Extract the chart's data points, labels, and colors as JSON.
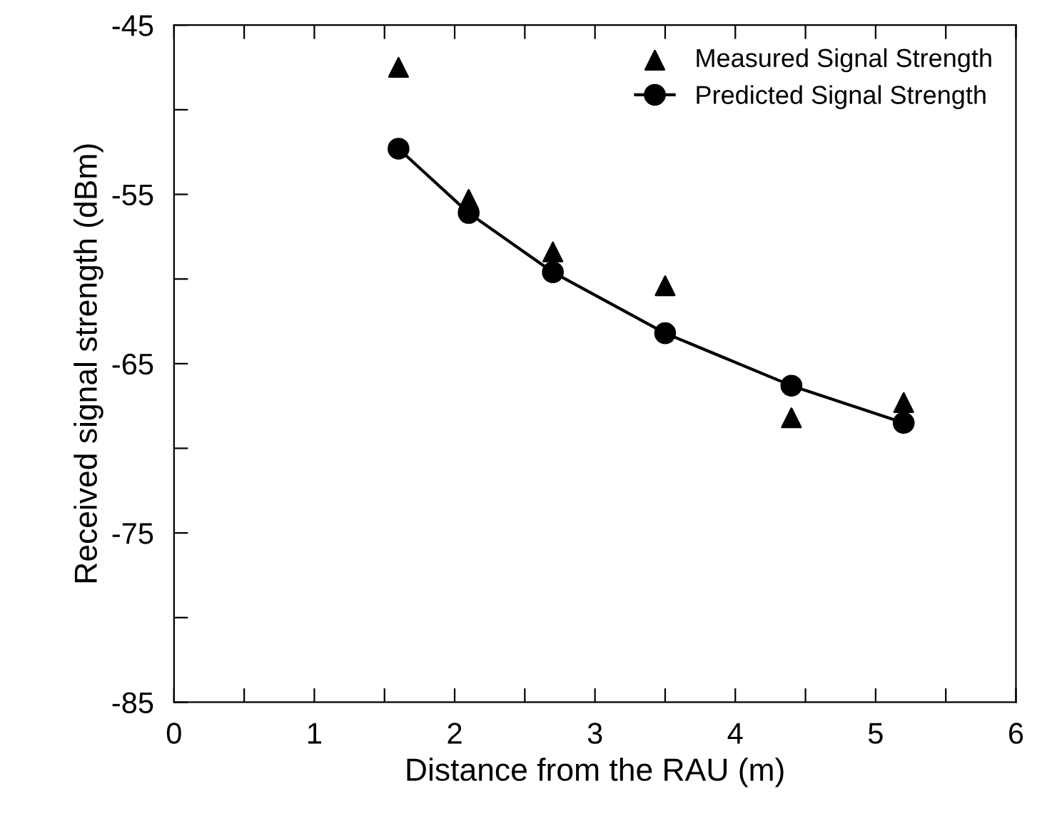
{
  "chart_data": {
    "type": "scatter",
    "xlabel": "Distance from the RAU (m)",
    "ylabel": "Received signal strength (dBm)",
    "xlim": [
      0,
      6
    ],
    "ylim": [
      -85,
      -45
    ],
    "xticks": [
      0,
      {
        "value": 0.5,
        "label": null
      },
      1,
      {
        "value": 1.5,
        "label": null
      },
      2,
      {
        "value": 2.5,
        "label": null
      },
      3,
      {
        "value": 3.5,
        "label": null
      },
      4,
      {
        "value": 4.5,
        "label": null
      },
      5,
      {
        "value": 5.5,
        "label": null
      },
      6
    ],
    "yticks": [
      -85,
      {
        "value": -80,
        "label": null
      },
      -75,
      {
        "value": -70,
        "label": null
      },
      -65,
      {
        "value": -60,
        "label": null
      },
      -55,
      {
        "value": -50,
        "label": null
      },
      -45
    ],
    "grid": false,
    "legend": "top right",
    "series": [
      {
        "name": "Measured Signal Strength",
        "marker": "triangle",
        "color": "#000000",
        "x": [
          1.6,
          2.1,
          2.7,
          3.5,
          4.4,
          5.2
        ],
        "values": [
          -47.5,
          -55.3,
          -58.4,
          -60.4,
          -68.2,
          -67.3
        ]
      },
      {
        "name": "Predicted Signal Strength",
        "type": "line",
        "marker": "circle",
        "line_style": "solid",
        "color": "#000000",
        "x": [
          1.6,
          2.1,
          2.7,
          3.5,
          4.4,
          5.2
        ],
        "values": [
          -52.3,
          -56.1,
          -59.6,
          -63.2,
          -66.3,
          -68.5
        ]
      }
    ]
  }
}
